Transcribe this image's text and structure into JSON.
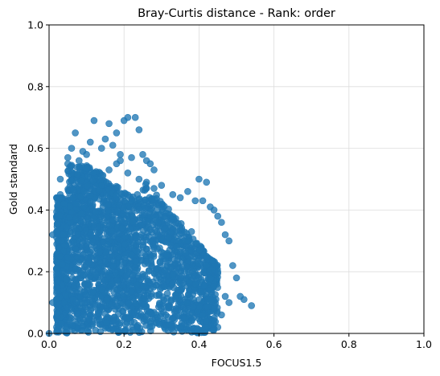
{
  "chart_data": {
    "type": "scatter",
    "title": "Bray-Curtis distance - Rank: order",
    "xlabel": "FOCUS1.5",
    "ylabel": "Gold standard",
    "xlim": [
      0,
      1
    ],
    "ylim": [
      0,
      1
    ],
    "xticks": [
      "0.0",
      "0.2",
      "0.4",
      "0.6",
      "0.8",
      "1.0"
    ],
    "yticks": [
      "0.0",
      "0.2",
      "0.4",
      "0.6",
      "0.8",
      "1.0"
    ],
    "grid": true,
    "color": "#1f77b4",
    "series": [
      {
        "x": [
          0.07,
          0.12,
          0.16,
          0.2,
          0.21,
          0.23,
          0.24,
          0.18,
          0.15,
          0.11,
          0.09,
          0.06,
          0.05,
          0.05,
          0.03,
          0.03,
          0.04,
          0.08,
          0.1,
          0.14,
          0.17,
          0.19,
          0.22,
          0.25,
          0.26,
          0.27,
          0.28,
          0.3,
          0.33,
          0.35,
          0.37,
          0.39,
          0.4,
          0.42,
          0.41,
          0.43,
          0.44,
          0.45,
          0.46,
          0.47,
          0.48,
          0.49,
          0.5,
          0.51,
          0.52,
          0.54,
          0.38,
          0.36,
          0.34,
          0.32,
          0.31,
          0.29,
          0.42,
          0.42,
          0.45,
          0.4,
          0.39,
          0.43,
          0.47,
          0.48,
          0.44,
          0.46,
          0.36,
          0.38,
          0.32,
          0.35,
          0.02,
          0.01,
          0.02,
          0.03,
          0.0,
          0.01,
          0.12,
          0.14,
          0.16,
          0.18,
          0.19,
          0.21,
          0.24,
          0.26,
          0.28,
          0.44,
          0.42,
          0.45,
          0.41
        ],
        "y": [
          0.65,
          0.69,
          0.68,
          0.69,
          0.7,
          0.7,
          0.66,
          0.65,
          0.63,
          0.62,
          0.59,
          0.6,
          0.57,
          0.55,
          0.5,
          0.45,
          0.42,
          0.56,
          0.58,
          0.6,
          0.61,
          0.58,
          0.57,
          0.58,
          0.56,
          0.55,
          0.53,
          0.48,
          0.45,
          0.44,
          0.46,
          0.43,
          0.5,
          0.49,
          0.43,
          0.41,
          0.4,
          0.38,
          0.36,
          0.32,
          0.3,
          0.22,
          0.18,
          0.12,
          0.11,
          0.09,
          0.33,
          0.3,
          0.28,
          0.31,
          0.34,
          0.36,
          0.25,
          0.22,
          0.2,
          0.18,
          0.16,
          0.14,
          0.12,
          0.1,
          0.08,
          0.06,
          0.05,
          0.04,
          0.03,
          0.02,
          0.44,
          0.32,
          0.21,
          0.25,
          0.0,
          0.1,
          0.52,
          0.48,
          0.53,
          0.55,
          0.56,
          0.52,
          0.5,
          0.49,
          0.47,
          0.03,
          0.04,
          0.02,
          0.06
        ]
      }
    ]
  }
}
